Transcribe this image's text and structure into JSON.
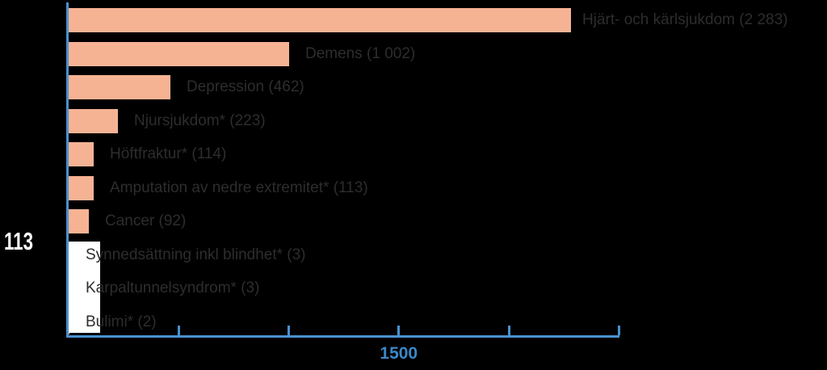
{
  "colors": {
    "background": "#000000",
    "bar": "#f6b394",
    "axis": "#4a91d0",
    "tick_label": "#3d87c7",
    "category_label": "#2d2d2d",
    "highlight_box": "#ffffff",
    "annotation": "#ffffff"
  },
  "annotation": {
    "text": "113"
  },
  "chart_data": {
    "type": "bar",
    "orientation": "horizontal",
    "title": "",
    "xlabel": "",
    "ylabel": "",
    "xlim": [
      0,
      2500
    ],
    "grid": false,
    "legend": false,
    "categories": [
      "Hjärt- och kärlsjukdom",
      "Demens",
      "Depression",
      "Njursjukdom*",
      "Höftfraktur*",
      "Amputation av nedre extremitet*",
      "Cancer",
      "Synnedsättning inkl blindhet*",
      "Karpaltunnelsyndrom*",
      "Bulimi*"
    ],
    "values": [
      2283,
      1002,
      462,
      223,
      114,
      113,
      92,
      3,
      3,
      2
    ],
    "bar_labels": [
      "Hjärt- och kärlsjukdom (2 283)",
      "Demens (1 002)",
      "Depression (462)",
      "Njursjukdom* (223)",
      "Höftfraktur* (114)",
      "Amputation av nedre extremitet* (113)",
      "Cancer (92)",
      "Synnedsättning inkl blindhet* (3)",
      "Karpaltunnelsyndrom* (3)",
      "Bulimi* (2)"
    ],
    "x_ticks": [
      {
        "value": 500,
        "label": ""
      },
      {
        "value": 1000,
        "label": ""
      },
      {
        "value": 1500,
        "label": "1500"
      },
      {
        "value": 2000,
        "label": ""
      },
      {
        "value": 2500,
        "label": ""
      }
    ]
  }
}
